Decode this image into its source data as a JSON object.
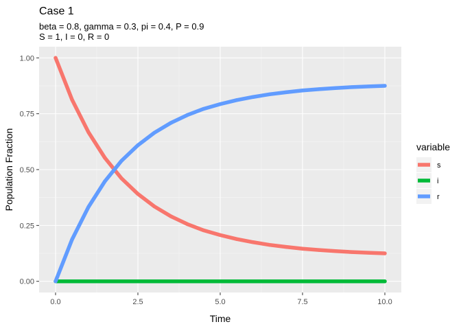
{
  "chart_data": {
    "type": "line",
    "title": "Case 1",
    "subtitle_lines": [
      "beta = 0.8, gamma = 0.3, pi = 0.4, P = 0.9",
      "S = 1, I = 0, R = 0"
    ],
    "xlabel": "Time",
    "ylabel": "Population Fraction",
    "xlim": [
      -0.5,
      10.5
    ],
    "ylim": [
      -0.05,
      1.05
    ],
    "x_ticks": [
      0.0,
      2.5,
      5.0,
      7.5,
      10.0
    ],
    "x_tick_labels": [
      "0.0",
      "2.5",
      "5.0",
      "7.5",
      "10.0"
    ],
    "y_ticks": [
      0.0,
      0.25,
      0.5,
      0.75,
      1.0
    ],
    "y_tick_labels": [
      "0.00",
      "0.25",
      "0.50",
      "0.75",
      "1.00"
    ],
    "grid": true,
    "legend": {
      "title": "variable",
      "placement": "right"
    },
    "x": [
      0,
      0.5,
      1,
      1.5,
      2,
      2.5,
      3,
      3.5,
      4,
      4.5,
      5,
      5.5,
      6,
      6.5,
      7,
      7.5,
      8,
      8.5,
      9,
      9.5,
      10
    ],
    "series": [
      {
        "name": "s",
        "color": "#f8766d",
        "values": [
          1.0,
          0.813,
          0.667,
          0.552,
          0.461,
          0.391,
          0.335,
          0.291,
          0.256,
          0.228,
          0.207,
          0.189,
          0.175,
          0.163,
          0.154,
          0.146,
          0.14,
          0.135,
          0.131,
          0.128,
          0.125
        ]
      },
      {
        "name": "i",
        "color": "#00ba38",
        "values": [
          0,
          0,
          0,
          0,
          0,
          0,
          0,
          0,
          0,
          0,
          0,
          0,
          0,
          0,
          0,
          0,
          0,
          0,
          0,
          0,
          0
        ]
      },
      {
        "name": "r",
        "color": "#619cff",
        "values": [
          0.0,
          0.187,
          0.333,
          0.448,
          0.539,
          0.609,
          0.665,
          0.709,
          0.744,
          0.772,
          0.793,
          0.811,
          0.825,
          0.837,
          0.846,
          0.854,
          0.86,
          0.865,
          0.869,
          0.872,
          0.875
        ]
      }
    ]
  }
}
